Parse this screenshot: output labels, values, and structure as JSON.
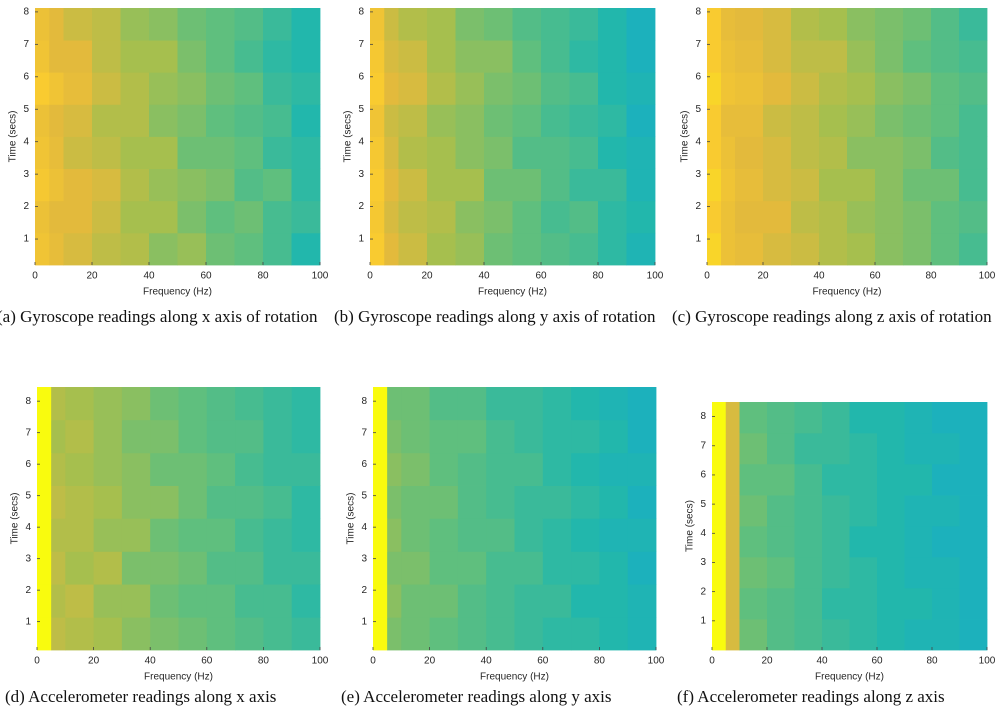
{
  "chart_data": [
    {
      "type": "heatmap",
      "caption": "(a) Gyroscope readings along x axis of rotation",
      "x_label": "Frequency (Hz)",
      "y_label": "Time (secs)",
      "xlim": [
        0,
        100
      ],
      "ylim": [
        0.2,
        8.12
      ],
      "xticks": [
        0,
        20,
        40,
        60,
        80,
        100
      ],
      "yticks": [
        1,
        2,
        3,
        4,
        5,
        6,
        7,
        8
      ],
      "colormap": [
        "#3e26a8",
        "#4745e8",
        "#2f6ffb",
        "#1c90e8",
        "#14a8d3",
        "#22b7ac",
        "#5fbf7e",
        "#a6bf4e",
        "#e3ba3c",
        "#f9cb30",
        "#f9fb0e"
      ],
      "x_edges": [
        0,
        5,
        10,
        20,
        30,
        40,
        50,
        60,
        70,
        80,
        90,
        100
      ],
      "y_edges": [
        0.2,
        1.19,
        2.18,
        3.17,
        4.16,
        5.15,
        6.14,
        7.13,
        8.12
      ],
      "values": [
        [
          0.86,
          0.82,
          0.78,
          0.74,
          0.72,
          0.66,
          0.68,
          0.62,
          0.6,
          0.56,
          0.5
        ],
        [
          0.84,
          0.8,
          0.8,
          0.76,
          0.7,
          0.7,
          0.64,
          0.6,
          0.62,
          0.56,
          0.54
        ],
        [
          0.88,
          0.84,
          0.8,
          0.78,
          0.72,
          0.68,
          0.66,
          0.64,
          0.58,
          0.6,
          0.52
        ],
        [
          0.86,
          0.82,
          0.76,
          0.74,
          0.7,
          0.7,
          0.62,
          0.62,
          0.6,
          0.54,
          0.52
        ],
        [
          0.84,
          0.8,
          0.78,
          0.72,
          0.72,
          0.66,
          0.64,
          0.6,
          0.58,
          0.56,
          0.5
        ],
        [
          0.9,
          0.86,
          0.82,
          0.76,
          0.72,
          0.68,
          0.66,
          0.62,
          0.6,
          0.54,
          0.52
        ],
        [
          0.86,
          0.8,
          0.8,
          0.74,
          0.7,
          0.7,
          0.64,
          0.6,
          0.56,
          0.52,
          0.5
        ],
        [
          0.84,
          0.8,
          0.76,
          0.74,
          0.68,
          0.66,
          0.62,
          0.6,
          0.58,
          0.54,
          0.5
        ]
      ]
    },
    {
      "type": "heatmap",
      "caption": "(b) Gyroscope readings along y axis of rotation",
      "x_label": "Frequency (Hz)",
      "y_label": "Time (secs)",
      "xlim": [
        0,
        100
      ],
      "ylim": [
        0.2,
        8.12
      ],
      "xticks": [
        0,
        20,
        40,
        60,
        80,
        100
      ],
      "yticks": [
        1,
        2,
        3,
        4,
        5,
        6,
        7,
        8
      ],
      "colormap": [
        "#3e26a8",
        "#4745e8",
        "#2f6ffb",
        "#1c90e8",
        "#14a8d3",
        "#22b7ac",
        "#5fbf7e",
        "#a6bf4e",
        "#e3ba3c",
        "#f9cb30",
        "#f9fb0e"
      ],
      "x_edges": [
        0,
        5,
        10,
        20,
        30,
        40,
        50,
        60,
        70,
        80,
        90,
        100
      ],
      "y_edges": [
        0.2,
        1.19,
        2.18,
        3.17,
        4.16,
        5.15,
        6.14,
        7.13,
        8.12
      ],
      "values": [
        [
          0.9,
          0.8,
          0.76,
          0.7,
          0.68,
          0.62,
          0.6,
          0.58,
          0.56,
          0.52,
          0.48
        ],
        [
          0.88,
          0.78,
          0.74,
          0.72,
          0.66,
          0.64,
          0.6,
          0.56,
          0.58,
          0.52,
          0.5
        ],
        [
          0.9,
          0.8,
          0.76,
          0.7,
          0.7,
          0.62,
          0.62,
          0.58,
          0.54,
          0.54,
          0.48
        ],
        [
          0.88,
          0.78,
          0.72,
          0.7,
          0.66,
          0.64,
          0.58,
          0.58,
          0.56,
          0.5,
          0.48
        ],
        [
          0.86,
          0.76,
          0.74,
          0.68,
          0.66,
          0.62,
          0.6,
          0.56,
          0.54,
          0.52,
          0.46
        ],
        [
          0.9,
          0.8,
          0.78,
          0.72,
          0.68,
          0.64,
          0.62,
          0.58,
          0.56,
          0.5,
          0.48
        ],
        [
          0.88,
          0.78,
          0.76,
          0.7,
          0.66,
          0.66,
          0.6,
          0.56,
          0.52,
          0.5,
          0.46
        ],
        [
          0.86,
          0.76,
          0.72,
          0.7,
          0.64,
          0.62,
          0.58,
          0.56,
          0.54,
          0.5,
          0.46
        ]
      ]
    },
    {
      "type": "heatmap",
      "caption": "(c) Gyroscope readings along z axis of rotation",
      "x_label": "Frequency (Hz)",
      "y_label": "Time (secs)",
      "xlim": [
        0,
        100
      ],
      "ylim": [
        0.2,
        8.12
      ],
      "xticks": [
        0,
        20,
        40,
        60,
        80,
        100
      ],
      "yticks": [
        1,
        2,
        3,
        4,
        5,
        6,
        7,
        8
      ],
      "colormap": [
        "#3e26a8",
        "#4745e8",
        "#2f6ffb",
        "#1c90e8",
        "#14a8d3",
        "#22b7ac",
        "#5fbf7e",
        "#a6bf4e",
        "#e3ba3c",
        "#f9cb30",
        "#f9fb0e"
      ],
      "x_edges": [
        0,
        5,
        10,
        20,
        30,
        40,
        50,
        60,
        70,
        80,
        90,
        100
      ],
      "y_edges": [
        0.2,
        1.19,
        2.18,
        3.17,
        4.16,
        5.15,
        6.14,
        7.13,
        8.12
      ],
      "values": [
        [
          0.92,
          0.84,
          0.82,
          0.78,
          0.76,
          0.72,
          0.7,
          0.66,
          0.64,
          0.6,
          0.56
        ],
        [
          0.9,
          0.84,
          0.8,
          0.8,
          0.74,
          0.72,
          0.68,
          0.66,
          0.64,
          0.6,
          0.58
        ],
        [
          0.92,
          0.86,
          0.82,
          0.78,
          0.76,
          0.7,
          0.7,
          0.66,
          0.62,
          0.62,
          0.56
        ],
        [
          0.9,
          0.84,
          0.8,
          0.78,
          0.74,
          0.72,
          0.66,
          0.66,
          0.64,
          0.58,
          0.56
        ],
        [
          0.9,
          0.82,
          0.82,
          0.76,
          0.74,
          0.7,
          0.68,
          0.64,
          0.62,
          0.6,
          0.56
        ],
        [
          0.92,
          0.86,
          0.84,
          0.8,
          0.76,
          0.72,
          0.7,
          0.66,
          0.64,
          0.6,
          0.58
        ],
        [
          0.9,
          0.84,
          0.82,
          0.78,
          0.74,
          0.74,
          0.68,
          0.64,
          0.6,
          0.58,
          0.56
        ],
        [
          0.9,
          0.82,
          0.8,
          0.78,
          0.72,
          0.7,
          0.66,
          0.64,
          0.62,
          0.58,
          0.54
        ]
      ]
    },
    {
      "type": "heatmap",
      "caption": "(d) Accelerometer readings along x axis",
      "x_label": "Frequency (Hz)",
      "y_label": "Time (secs)",
      "xlim": [
        0,
        100
      ],
      "ylim": [
        0.1,
        8.45
      ],
      "xticks": [
        0,
        20,
        40,
        60,
        80,
        100
      ],
      "yticks": [
        1,
        2,
        3,
        4,
        5,
        6,
        7,
        8
      ],
      "colormap": [
        "#3e26a8",
        "#4745e8",
        "#2f6ffb",
        "#1c90e8",
        "#14a8d3",
        "#22b7ac",
        "#5fbf7e",
        "#a6bf4e",
        "#e3ba3c",
        "#f9cb30",
        "#f9fb0e"
      ],
      "x_edges": [
        0,
        5,
        10,
        20,
        30,
        40,
        50,
        60,
        70,
        80,
        90,
        100
      ],
      "y_edges": [
        0.1,
        1.14,
        2.19,
        3.23,
        4.28,
        5.32,
        6.36,
        7.41,
        8.45
      ],
      "values": [
        [
          1.0,
          0.74,
          0.72,
          0.7,
          0.66,
          0.64,
          0.62,
          0.6,
          0.58,
          0.56,
          0.54
        ],
        [
          1.0,
          0.72,
          0.74,
          0.68,
          0.68,
          0.62,
          0.6,
          0.6,
          0.56,
          0.56,
          0.52
        ],
        [
          1.0,
          0.74,
          0.7,
          0.72,
          0.64,
          0.64,
          0.62,
          0.58,
          0.58,
          0.54,
          0.54
        ],
        [
          1.0,
          0.72,
          0.72,
          0.68,
          0.68,
          0.62,
          0.6,
          0.6,
          0.56,
          0.54,
          0.52
        ],
        [
          1.0,
          0.74,
          0.72,
          0.7,
          0.66,
          0.66,
          0.62,
          0.58,
          0.58,
          0.56,
          0.52
        ],
        [
          1.0,
          0.72,
          0.7,
          0.68,
          0.66,
          0.62,
          0.62,
          0.6,
          0.56,
          0.54,
          0.54
        ],
        [
          1.0,
          0.7,
          0.72,
          0.68,
          0.64,
          0.64,
          0.6,
          0.58,
          0.58,
          0.54,
          0.52
        ],
        [
          1.0,
          0.72,
          0.7,
          0.68,
          0.66,
          0.62,
          0.6,
          0.58,
          0.56,
          0.54,
          0.52
        ]
      ]
    },
    {
      "type": "heatmap",
      "caption": "(e) Accelerometer readings along y axis",
      "x_label": "Frequency (Hz)",
      "y_label": "Time (secs)",
      "xlim": [
        0,
        100
      ],
      "ylim": [
        0.1,
        8.45
      ],
      "xticks": [
        0,
        20,
        40,
        60,
        80,
        100
      ],
      "yticks": [
        1,
        2,
        3,
        4,
        5,
        6,
        7,
        8
      ],
      "colormap": [
        "#3e26a8",
        "#4745e8",
        "#2f6ffb",
        "#1c90e8",
        "#14a8d3",
        "#22b7ac",
        "#5fbf7e",
        "#a6bf4e",
        "#e3ba3c",
        "#f9cb30",
        "#f9fb0e"
      ],
      "x_edges": [
        0,
        5,
        10,
        20,
        30,
        40,
        50,
        60,
        70,
        80,
        90,
        100
      ],
      "y_edges": [
        0.1,
        1.14,
        2.19,
        3.23,
        4.28,
        5.32,
        6.36,
        7.41,
        8.45
      ],
      "values": [
        [
          1.0,
          0.64,
          0.62,
          0.6,
          0.58,
          0.56,
          0.54,
          0.52,
          0.52,
          0.5,
          0.48
        ],
        [
          1.0,
          0.66,
          0.62,
          0.62,
          0.58,
          0.56,
          0.54,
          0.54,
          0.5,
          0.5,
          0.48
        ],
        [
          1.0,
          0.64,
          0.64,
          0.6,
          0.6,
          0.56,
          0.56,
          0.52,
          0.52,
          0.5,
          0.46
        ],
        [
          1.0,
          0.66,
          0.62,
          0.6,
          0.58,
          0.58,
          0.54,
          0.52,
          0.5,
          0.48,
          0.48
        ],
        [
          1.0,
          0.64,
          0.62,
          0.62,
          0.58,
          0.56,
          0.54,
          0.54,
          0.52,
          0.5,
          0.46
        ],
        [
          1.0,
          0.66,
          0.64,
          0.6,
          0.58,
          0.56,
          0.56,
          0.52,
          0.5,
          0.48,
          0.48
        ],
        [
          1.0,
          0.64,
          0.62,
          0.6,
          0.6,
          0.56,
          0.54,
          0.52,
          0.52,
          0.5,
          0.46
        ],
        [
          1.0,
          0.62,
          0.62,
          0.58,
          0.58,
          0.54,
          0.54,
          0.52,
          0.5,
          0.48,
          0.46
        ]
      ]
    },
    {
      "type": "heatmap",
      "caption": "(f) Accelerometer readings along z axis",
      "x_label": "Frequency (Hz)",
      "y_label": "Time (secs)",
      "xlim": [
        0,
        100
      ],
      "ylim": [
        0,
        8.5
      ],
      "xticks": [
        0,
        20,
        40,
        60,
        80,
        100
      ],
      "yticks": [
        1,
        2,
        3,
        4,
        5,
        6,
        7,
        8
      ],
      "colormap": [
        "#3e26a8",
        "#4745e8",
        "#2f6ffb",
        "#1c90e8",
        "#14a8d3",
        "#22b7ac",
        "#5fbf7e",
        "#a6bf4e",
        "#e3ba3c",
        "#f9cb30",
        "#f9fb0e"
      ],
      "x_edges": [
        0,
        5,
        10,
        20,
        30,
        40,
        50,
        60,
        70,
        80,
        90,
        100
      ],
      "y_edges": [
        0,
        1.06,
        2.13,
        3.19,
        4.25,
        5.31,
        6.38,
        7.44,
        8.5
      ],
      "values": [
        [
          1.0,
          0.78,
          0.62,
          0.58,
          0.56,
          0.54,
          0.52,
          0.5,
          0.48,
          0.48,
          0.46
        ],
        [
          1.0,
          0.78,
          0.6,
          0.58,
          0.56,
          0.52,
          0.52,
          0.5,
          0.5,
          0.48,
          0.46
        ],
        [
          1.0,
          0.78,
          0.62,
          0.6,
          0.56,
          0.54,
          0.52,
          0.5,
          0.48,
          0.48,
          0.46
        ],
        [
          1.0,
          0.78,
          0.6,
          0.58,
          0.56,
          0.54,
          0.5,
          0.5,
          0.48,
          0.46,
          0.46
        ],
        [
          1.0,
          0.78,
          0.62,
          0.58,
          0.56,
          0.54,
          0.52,
          0.5,
          0.48,
          0.48,
          0.46
        ],
        [
          1.0,
          0.78,
          0.6,
          0.6,
          0.56,
          0.52,
          0.52,
          0.5,
          0.5,
          0.46,
          0.46
        ],
        [
          1.0,
          0.78,
          0.62,
          0.58,
          0.54,
          0.54,
          0.52,
          0.5,
          0.48,
          0.48,
          0.46
        ],
        [
          1.0,
          0.78,
          0.6,
          0.58,
          0.56,
          0.54,
          0.5,
          0.5,
          0.48,
          0.46,
          0.46
        ]
      ]
    }
  ]
}
